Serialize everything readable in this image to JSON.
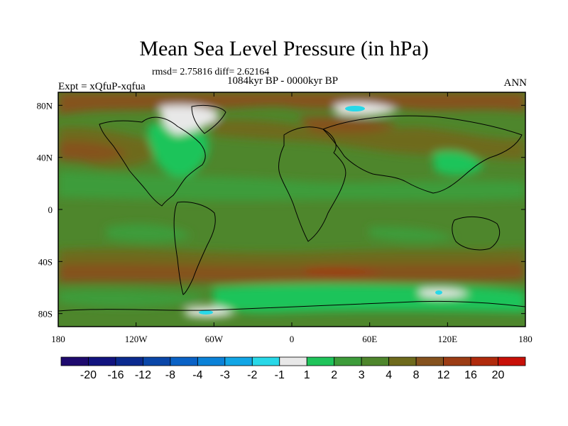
{
  "chart_data": {
    "type": "heatmap",
    "title": "Mean Sea Level Pressure (in hPa)",
    "stats": "rmsd= 2.75816 diff= 2.62164",
    "subtitle": "1084kyr BP - 0000kyr BP",
    "left_label": "Expt = xQfuP-xqfua",
    "right_label": "ANN",
    "x_ticks": [
      "180",
      "120W",
      "60W",
      "0",
      "60E",
      "120E",
      "180"
    ],
    "y_ticks": [
      "80N",
      "40N",
      "0",
      "40S",
      "80S"
    ],
    "xlim": [
      -180,
      180
    ],
    "ylim": [
      -90,
      90
    ],
    "colorbar": {
      "labels": [
        "-20",
        "-16",
        "-12",
        "-8",
        "-4",
        "-3",
        "-2",
        "-1",
        "1",
        "2",
        "3",
        "4",
        "8",
        "12",
        "16",
        "20"
      ],
      "colors": [
        "#1e0a6e",
        "#12137f",
        "#0b2a8f",
        "#0a46a8",
        "#0a62c6",
        "#0b82d8",
        "#12a6e6",
        "#28d8e8",
        "#e8e8e8",
        "#1fc45a",
        "#3d9c3a",
        "#4e862c",
        "#6e6a1c",
        "#85521e",
        "#9c3c14",
        "#b02a0c",
        "#c81008"
      ]
    },
    "regions": [
      {
        "level": "3",
        "color": "#4e862c",
        "area": "background global field"
      },
      {
        "level": "8",
        "color": "#6e6a1c",
        "area": "mid-latitude bands"
      },
      {
        "level": "12",
        "color": "#85521e",
        "area": "arctic edges / southern ocean"
      },
      {
        "level": "2",
        "color": "#3d9c3a",
        "area": "tropics and north america"
      },
      {
        "level": "1",
        "color": "#1fc45a",
        "area": "scattered patches"
      },
      {
        "level": "-1",
        "color": "#e8e8e8",
        "area": "greenland / antarctic coast"
      },
      {
        "level": "-2",
        "color": "#28d8e8",
        "area": "small cyan spots"
      }
    ]
  }
}
